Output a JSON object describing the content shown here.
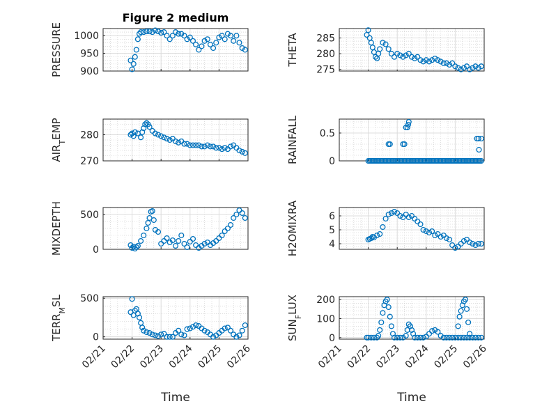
{
  "chart_data": [
    {
      "id": "pressure",
      "type": "scatter",
      "title": "Figure 2 medium",
      "ylabel": "PRESSURE",
      "xlabel": "",
      "ylim": [
        900,
        1020
      ],
      "yticks": [
        900,
        950,
        1000
      ],
      "xlim": [
        0,
        5
      ],
      "xticks": [
        "02/21",
        "02/22",
        "02/23",
        "02/24",
        "02/25",
        "02/26"
      ],
      "show_xticklabels": false,
      "marker_color": "#0072BD",
      "x": [
        0.95,
        1.0,
        1.05,
        1.1,
        1.15,
        1.2,
        1.25,
        1.3,
        1.4,
        1.5,
        1.6,
        1.7,
        1.8,
        1.9,
        2.0,
        2.1,
        2.2,
        2.3,
        2.4,
        2.5,
        2.6,
        2.7,
        2.8,
        2.9,
        3.0,
        3.1,
        3.2,
        3.3,
        3.4,
        3.5,
        3.6,
        3.7,
        3.8,
        3.9,
        4.0,
        4.1,
        4.2,
        4.3,
        4.4,
        4.5,
        4.6,
        4.7,
        4.8,
        4.9
      ],
      "y": [
        930,
        905,
        920,
        940,
        960,
        990,
        1005,
        1010,
        1010,
        1012,
        1012,
        1010,
        1015,
        1012,
        1008,
        1010,
        1000,
        990,
        1000,
        1010,
        1005,
        1005,
        1000,
        990,
        995,
        985,
        975,
        960,
        970,
        985,
        990,
        975,
        965,
        980,
        995,
        1000,
        990,
        1005,
        1000,
        985,
        1000,
        980,
        965,
        960
      ]
    },
    {
      "id": "theta",
      "type": "scatter",
      "title": "",
      "ylabel": "THETA",
      "xlabel": "",
      "ylim": [
        274.5,
        288
      ],
      "yticks": [
        275,
        280,
        285
      ],
      "xlim": [
        0,
        5
      ],
      "xticks": [
        "02/21",
        "02/22",
        "02/23",
        "02/24",
        "02/25",
        "02/26"
      ],
      "show_xticklabels": false,
      "marker_color": "#0072BD",
      "x": [
        0.95,
        1.0,
        1.05,
        1.1,
        1.15,
        1.2,
        1.25,
        1.3,
        1.35,
        1.4,
        1.5,
        1.6,
        1.7,
        1.8,
        1.9,
        2.0,
        2.1,
        2.2,
        2.3,
        2.4,
        2.5,
        2.6,
        2.7,
        2.8,
        2.9,
        3.0,
        3.1,
        3.2,
        3.3,
        3.4,
        3.5,
        3.6,
        3.7,
        3.8,
        3.9,
        4.0,
        4.1,
        4.2,
        4.3,
        4.4,
        4.5,
        4.6,
        4.7,
        4.8,
        4.9
      ],
      "y": [
        286,
        287.5,
        285,
        283.5,
        282,
        280.5,
        279,
        278.5,
        280,
        281.5,
        283.5,
        283,
        281.5,
        280,
        279,
        280,
        279.5,
        279,
        279.5,
        280,
        279,
        278.5,
        279,
        278,
        277.5,
        278,
        277.5,
        278,
        278.5,
        278,
        277.5,
        277,
        277,
        276.5,
        277,
        276,
        275.5,
        275,
        275.5,
        276,
        275,
        275.5,
        276,
        275.5,
        276
      ]
    },
    {
      "id": "air_temp",
      "type": "scatter",
      "title": "",
      "ylabel": "AIR_TEMP",
      "xlabel": "",
      "ylim": [
        270,
        286
      ],
      "yticks": [
        270,
        280
      ],
      "xlim": [
        0,
        5
      ],
      "xticks": [
        "02/21",
        "02/22",
        "02/23",
        "02/24",
        "02/25",
        "02/26"
      ],
      "show_xticklabels": false,
      "marker_color": "#0072BD",
      "x": [
        0.95,
        1.0,
        1.05,
        1.1,
        1.2,
        1.3,
        1.35,
        1.4,
        1.45,
        1.5,
        1.55,
        1.6,
        1.7,
        1.8,
        1.9,
        2.0,
        2.1,
        2.2,
        2.3,
        2.4,
        2.5,
        2.6,
        2.7,
        2.8,
        2.9,
        3.0,
        3.1,
        3.2,
        3.3,
        3.4,
        3.5,
        3.6,
        3.7,
        3.8,
        3.9,
        4.0,
        4.1,
        4.2,
        4.3,
        4.4,
        4.5,
        4.6,
        4.7,
        4.8,
        4.9
      ],
      "y": [
        280,
        280.5,
        279.5,
        281,
        280.5,
        279,
        281,
        282.5,
        284,
        284.5,
        284,
        283,
        281.5,
        280.5,
        280,
        279.5,
        279,
        278.5,
        278,
        278.5,
        277.5,
        277,
        277.5,
        276.5,
        276.5,
        276,
        276,
        276,
        276,
        275.5,
        275.5,
        276,
        275.5,
        275.5,
        275,
        275,
        274.5,
        275,
        274.5,
        275.5,
        276,
        275,
        274,
        273.5,
        273
      ]
    },
    {
      "id": "rainfall",
      "type": "scatter",
      "title": "",
      "ylabel": "RAINFALL",
      "xlabel": "",
      "ylim": [
        0,
        0.75
      ],
      "yticks": [
        0,
        0.5
      ],
      "xlim": [
        0,
        5
      ],
      "xticks": [
        "02/21",
        "02/22",
        "02/23",
        "02/24",
        "02/25",
        "02/26"
      ],
      "show_xticklabels": false,
      "marker_color": "#0072BD",
      "x": [
        1.0,
        1.05,
        1.1,
        1.15,
        1.2,
        1.25,
        1.3,
        1.35,
        1.4,
        1.45,
        1.5,
        1.55,
        1.6,
        1.65,
        1.7,
        1.75,
        1.8,
        1.85,
        1.9,
        1.95,
        2.0,
        2.05,
        2.1,
        2.15,
        2.2,
        2.25,
        2.3,
        2.35,
        2.4,
        2.45,
        2.5,
        2.55,
        2.6,
        2.65,
        2.7,
        2.75,
        2.8,
        2.85,
        2.9,
        2.95,
        3.0,
        3.05,
        3.1,
        3.15,
        3.2,
        3.25,
        3.3,
        3.35,
        3.4,
        3.45,
        3.5,
        3.55,
        3.6,
        3.65,
        3.7,
        3.75,
        3.8,
        3.85,
        3.9,
        3.95,
        4.0,
        4.05,
        4.1,
        4.15,
        4.2,
        4.25,
        4.3,
        4.35,
        4.4,
        4.45,
        4.5,
        4.55,
        4.6,
        4.65,
        4.7,
        4.75,
        4.8,
        4.85,
        4.9,
        1.7,
        1.75,
        2.2,
        2.25,
        2.3,
        2.35,
        2.4,
        2.38,
        4.75,
        4.8,
        4.82,
        4.9
      ],
      "y": [
        0,
        0,
        0,
        0,
        0,
        0,
        0,
        0,
        0,
        0,
        0,
        0,
        0,
        0,
        0,
        0,
        0,
        0,
        0,
        0,
        0,
        0,
        0,
        0,
        0,
        0,
        0,
        0,
        0,
        0,
        0,
        0,
        0,
        0,
        0,
        0,
        0,
        0,
        0,
        0,
        0,
        0,
        0,
        0,
        0,
        0,
        0,
        0,
        0,
        0,
        0,
        0,
        0,
        0,
        0,
        0,
        0,
        0,
        0,
        0,
        0,
        0,
        0,
        0,
        0,
        0,
        0,
        0,
        0,
        0,
        0,
        0,
        0,
        0,
        0,
        0,
        0,
        0,
        0,
        0.3,
        0.3,
        0.3,
        0.3,
        0.6,
        0.6,
        0.7,
        0.65,
        0.4,
        0.4,
        0.2,
        0.4
      ]
    },
    {
      "id": "mixdepth",
      "type": "scatter",
      "title": "",
      "ylabel": "MIXDEPTH",
      "xlabel": "",
      "ylim": [
        0,
        600
      ],
      "yticks": [
        0,
        500
      ],
      "xlim": [
        0,
        5
      ],
      "xticks": [
        "02/21",
        "02/22",
        "02/23",
        "02/24",
        "02/25",
        "02/26"
      ],
      "show_xticklabels": false,
      "marker_color": "#0072BD",
      "x": [
        0.95,
        1.0,
        1.05,
        1.1,
        1.15,
        1.2,
        1.3,
        1.4,
        1.5,
        1.55,
        1.6,
        1.65,
        1.7,
        1.75,
        1.8,
        1.9,
        2.0,
        2.1,
        2.2,
        2.3,
        2.4,
        2.5,
        2.6,
        2.7,
        2.8,
        2.9,
        3.0,
        3.1,
        3.2,
        3.3,
        3.4,
        3.5,
        3.6,
        3.7,
        3.8,
        3.9,
        4.0,
        4.1,
        4.2,
        4.3,
        4.4,
        4.5,
        4.6,
        4.7,
        4.8,
        4.9
      ],
      "y": [
        60,
        20,
        40,
        10,
        30,
        50,
        120,
        200,
        300,
        380,
        450,
        540,
        550,
        420,
        280,
        250,
        80,
        120,
        160,
        100,
        130,
        50,
        120,
        200,
        80,
        30,
        110,
        150,
        60,
        20,
        50,
        80,
        100,
        60,
        90,
        120,
        160,
        200,
        260,
        300,
        350,
        450,
        500,
        560,
        520,
        450
      ]
    },
    {
      "id": "h2omixra",
      "type": "scatter",
      "title": "",
      "ylabel": "H2OMIXRA",
      "xlabel": "",
      "ylim": [
        3.6,
        6.6
      ],
      "yticks": [
        4,
        5,
        6
      ],
      "xlim": [
        0,
        5
      ],
      "xticks": [
        "02/21",
        "02/22",
        "02/23",
        "02/24",
        "02/25",
        "02/26"
      ],
      "show_xticklabels": false,
      "marker_color": "#0072BD",
      "x": [
        1.0,
        1.05,
        1.1,
        1.15,
        1.2,
        1.3,
        1.4,
        1.5,
        1.6,
        1.7,
        1.8,
        1.9,
        2.0,
        2.1,
        2.2,
        2.3,
        2.4,
        2.5,
        2.6,
        2.7,
        2.8,
        2.9,
        3.0,
        3.1,
        3.2,
        3.3,
        3.4,
        3.5,
        3.6,
        3.7,
        3.8,
        3.9,
        4.0,
        4.1,
        4.2,
        4.3,
        4.4,
        4.5,
        4.6,
        4.7,
        4.8,
        4.9
      ],
      "y": [
        4.3,
        4.35,
        4.4,
        4.5,
        4.45,
        4.6,
        4.7,
        5.2,
        5.8,
        6.1,
        6.2,
        6.3,
        6.2,
        6.0,
        5.9,
        6.1,
        5.9,
        6.0,
        5.8,
        5.6,
        5.4,
        5.0,
        4.9,
        4.8,
        4.9,
        4.6,
        4.7,
        4.5,
        4.6,
        4.4,
        4.3,
        3.9,
        3.7,
        3.8,
        4.0,
        4.2,
        4.3,
        4.1,
        4.0,
        3.9,
        4.0,
        4.0
      ]
    },
    {
      "id": "terr_msl",
      "type": "scatter",
      "title": "",
      "ylabel": "TERR_MSL",
      "xlabel": "Time",
      "ylim": [
        -30,
        520
      ],
      "yticks": [
        0,
        500
      ],
      "xlim": [
        0,
        5
      ],
      "xticks": [
        "02/21",
        "02/22",
        "02/23",
        "02/24",
        "02/25",
        "02/26"
      ],
      "show_xticklabels": true,
      "marker_color": "#0072BD",
      "x": [
        0.95,
        1.0,
        1.05,
        1.1,
        1.15,
        1.2,
        1.25,
        1.3,
        1.35,
        1.4,
        1.5,
        1.6,
        1.7,
        1.8,
        1.9,
        2.0,
        2.1,
        2.2,
        2.3,
        2.4,
        2.5,
        2.6,
        2.7,
        2.8,
        2.9,
        3.0,
        3.1,
        3.2,
        3.3,
        3.4,
        3.5,
        3.6,
        3.7,
        3.8,
        3.9,
        4.0,
        4.1,
        4.2,
        4.3,
        4.4,
        4.5,
        4.6,
        4.7,
        4.8,
        4.9
      ],
      "y": [
        320,
        490,
        280,
        340,
        360,
        300,
        250,
        180,
        120,
        80,
        60,
        50,
        30,
        20,
        10,
        30,
        40,
        0,
        0,
        0,
        50,
        80,
        30,
        20,
        100,
        110,
        130,
        150,
        140,
        110,
        80,
        60,
        30,
        0,
        20,
        50,
        80,
        110,
        120,
        80,
        30,
        0,
        20,
        80,
        150
      ]
    },
    {
      "id": "sun_flux",
      "type": "scatter",
      "title": "",
      "ylabel": "SUN_FLUX",
      "xlabel": "Time",
      "ylim": [
        -8,
        215
      ],
      "yticks": [
        0,
        100,
        200
      ],
      "xlim": [
        0,
        5
      ],
      "xticks": [
        "02/21",
        "02/22",
        "02/23",
        "02/24",
        "02/25",
        "02/26"
      ],
      "show_xticklabels": true,
      "marker_color": "#0072BD",
      "x": [
        0.95,
        1.0,
        1.1,
        1.2,
        1.3,
        1.35,
        1.4,
        1.45,
        1.5,
        1.55,
        1.6,
        1.65,
        1.7,
        1.75,
        1.8,
        1.85,
        1.9,
        2.0,
        2.1,
        2.2,
        2.3,
        2.35,
        2.4,
        2.45,
        2.5,
        2.55,
        2.6,
        2.7,
        2.8,
        2.9,
        3.0,
        3.1,
        3.2,
        3.3,
        3.4,
        3.5,
        3.6,
        3.7,
        3.8,
        3.9,
        4.0,
        4.1,
        4.2,
        4.3,
        4.4,
        4.5,
        4.6,
        4.7,
        4.8,
        4.9,
        4.1,
        4.15,
        4.2,
        4.25,
        4.3,
        4.35,
        4.4,
        4.45,
        4.5
      ],
      "y": [
        0,
        0,
        0,
        0,
        0,
        10,
        40,
        80,
        130,
        170,
        190,
        200,
        160,
        110,
        60,
        20,
        0,
        0,
        0,
        0,
        10,
        40,
        70,
        60,
        40,
        20,
        0,
        0,
        0,
        0,
        5,
        20,
        35,
        40,
        30,
        10,
        0,
        0,
        0,
        0,
        0,
        0,
        0,
        0,
        0,
        0,
        0,
        0,
        0,
        0,
        60,
        110,
        140,
        170,
        190,
        200,
        150,
        80,
        20
      ]
    }
  ]
}
